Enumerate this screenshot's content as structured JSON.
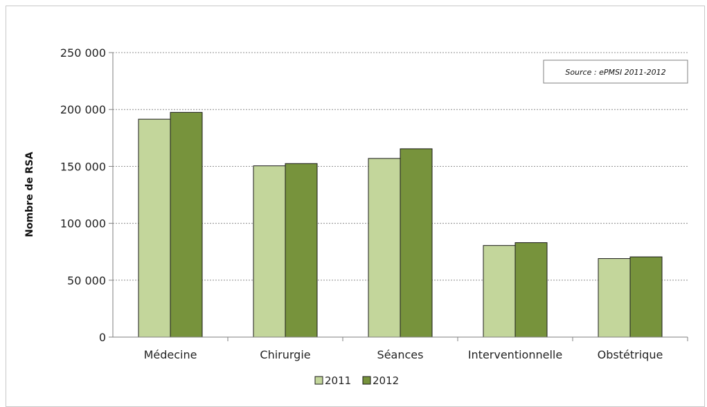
{
  "chart_data": {
    "type": "bar",
    "categories": [
      "Médecine",
      "Chirurgie",
      "Séances",
      "Interventionnelle",
      "Obstétrique"
    ],
    "series": [
      {
        "name": "2011",
        "values": [
          191500,
          150500,
          157000,
          80500,
          69000
        ],
        "color": "#c3d69b"
      },
      {
        "name": "2012",
        "values": [
          197500,
          152500,
          165500,
          83000,
          70500
        ],
        "color": "#77933c"
      }
    ],
    "ylabel": "Nombre de RSA",
    "ylim": [
      0,
      250000
    ],
    "yticks": [
      0,
      50000,
      100000,
      150000,
      200000,
      250000
    ],
    "ytick_labels": [
      "0",
      "50 000",
      "100 000",
      "150 000",
      "200 000",
      "250 000"
    ],
    "grid": true,
    "legend_position": "bottom",
    "annotation": "Source : ePMSI 2011-2012"
  }
}
